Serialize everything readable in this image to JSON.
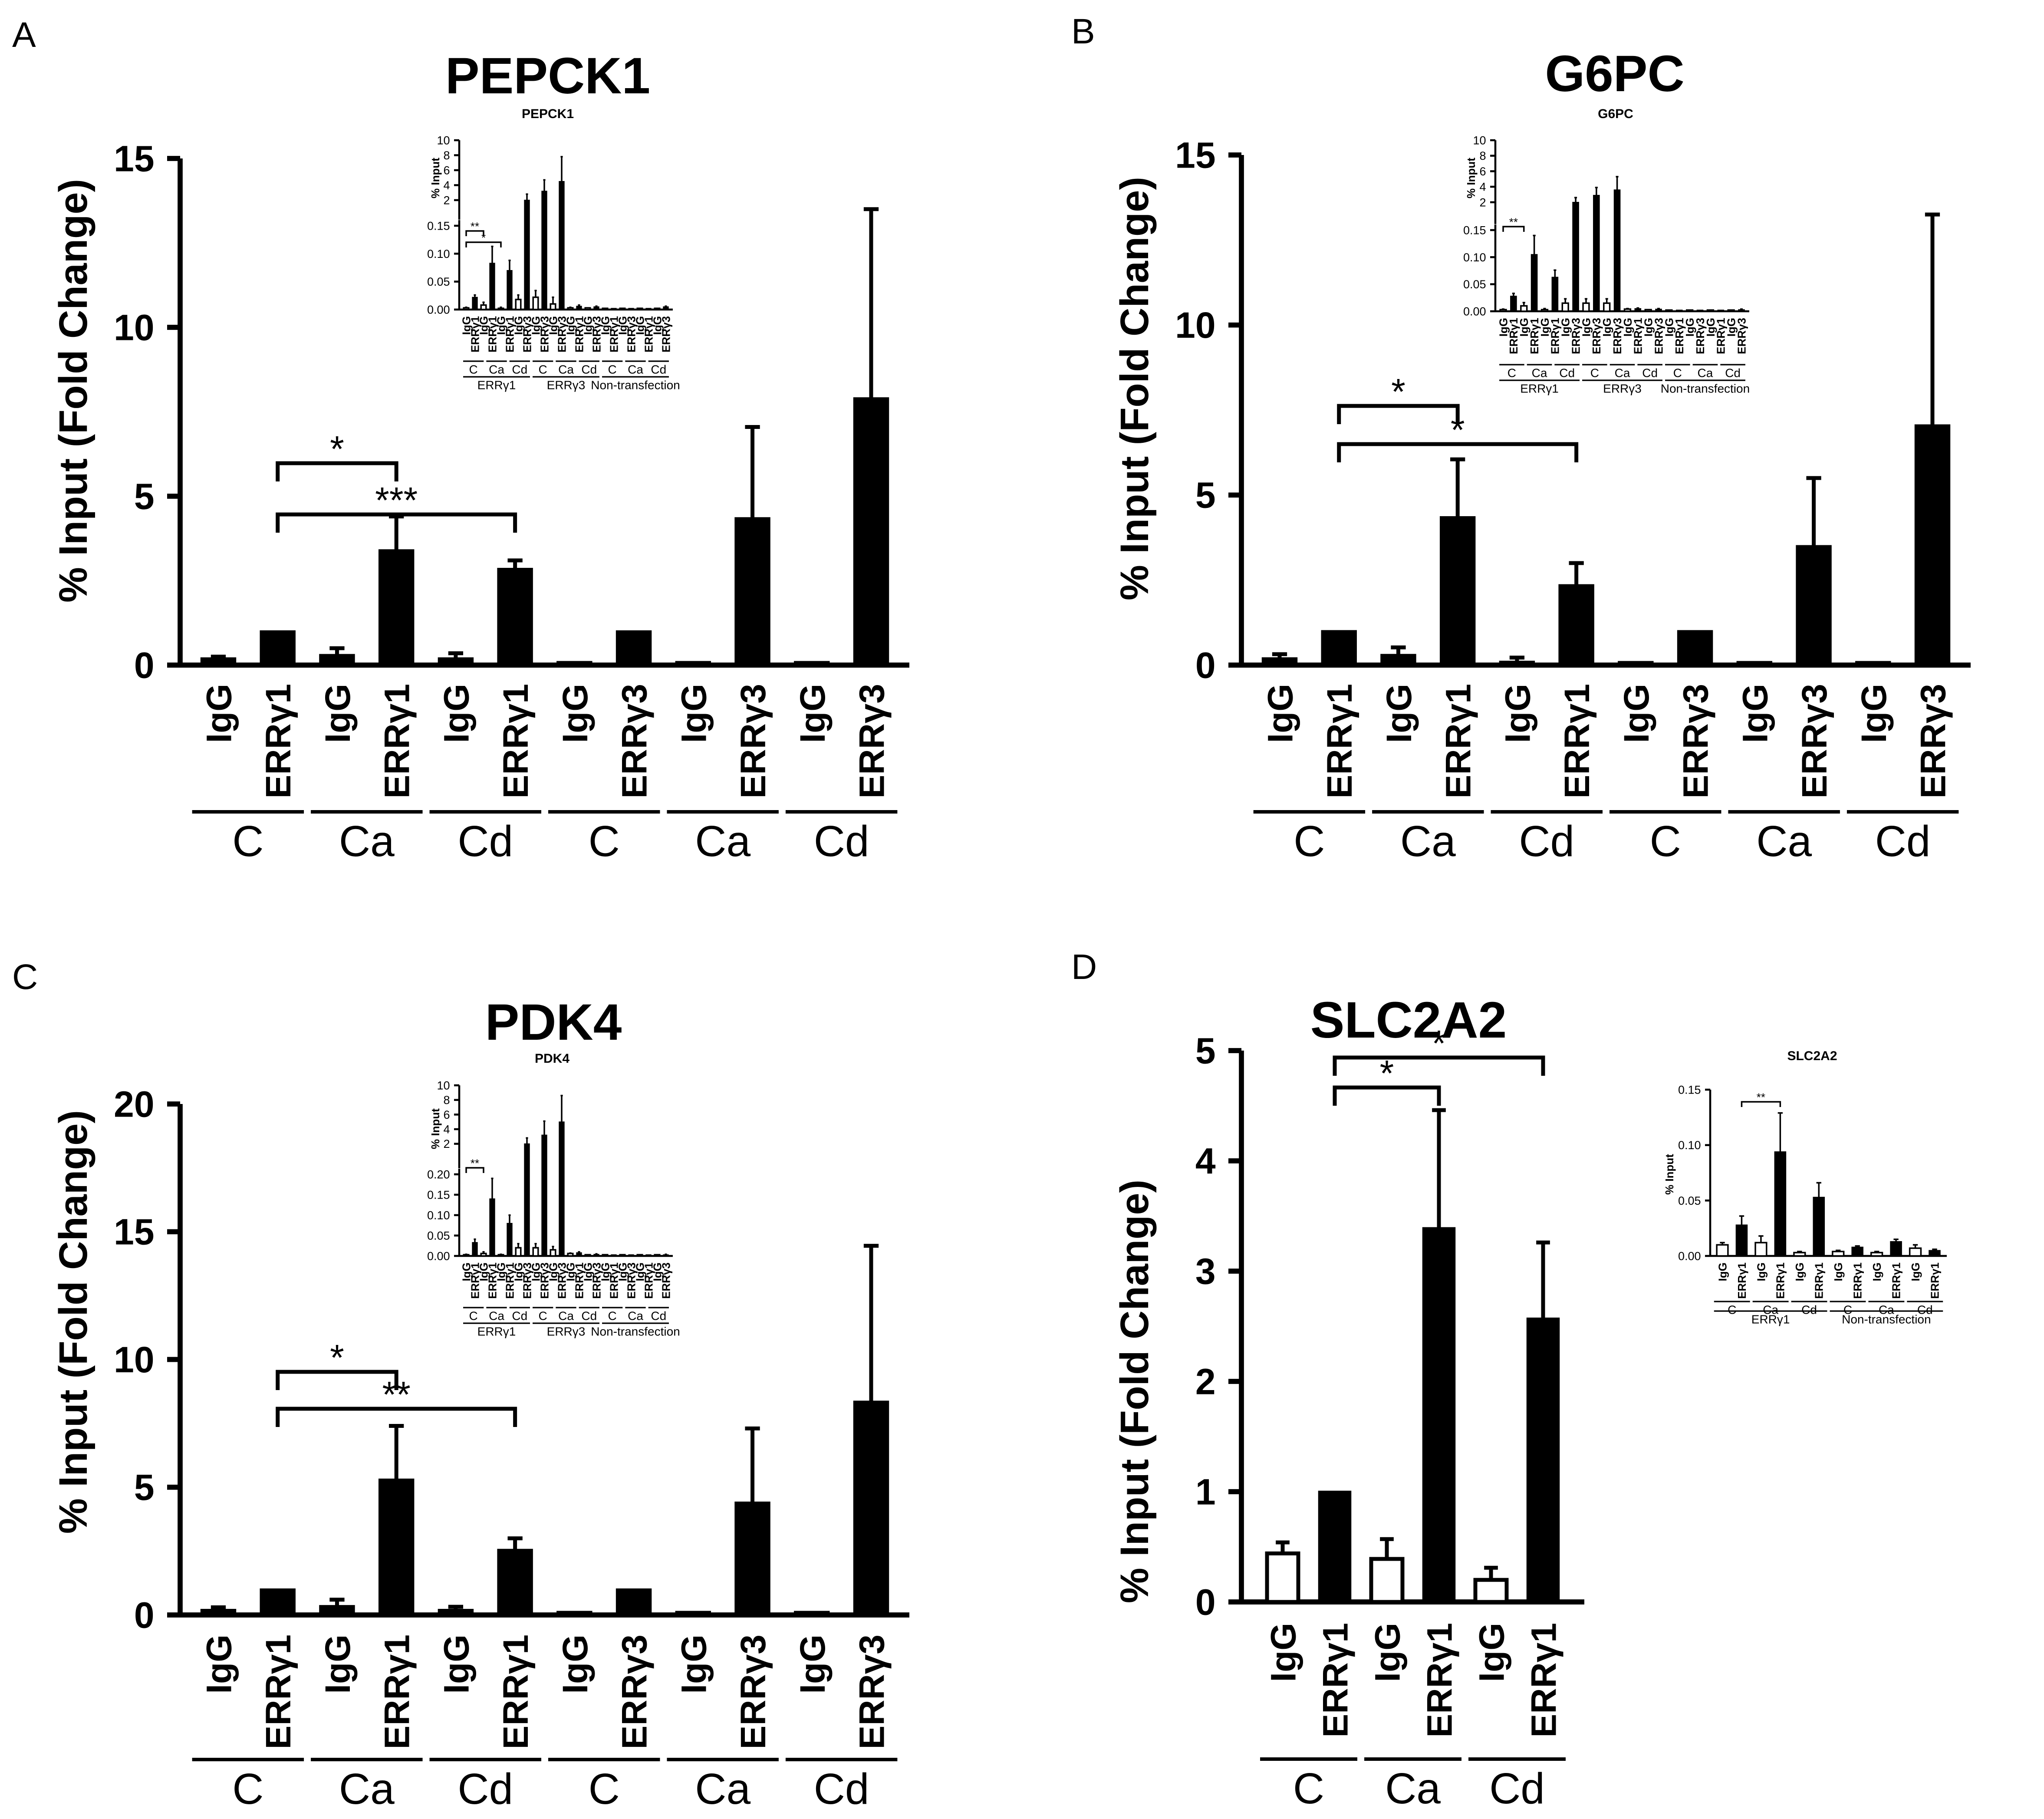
{
  "chart_data": [
    {
      "panel": "A",
      "type": "bar",
      "title": "PEPCK1",
      "ylabel": "% Input (Fold Change)",
      "ylim": [
        0,
        15
      ],
      "yticks": [
        "0",
        "5",
        "10",
        "15"
      ],
      "categories": [
        "IgG",
        "ERRγ1",
        "IgG",
        "ERRγ1",
        "IgG",
        "ERRγ1",
        "IgG",
        "ERRγ3",
        "IgG",
        "ERRγ3",
        "IgG",
        "ERRγ3"
      ],
      "values": [
        0.2,
        1.0,
        0.3,
        3.4,
        0.2,
        2.85,
        0.02,
        1.0,
        0.02,
        4.35,
        0.02,
        7.9
      ],
      "errors": [
        0.05,
        0,
        0.2,
        1.0,
        0.15,
        0.25,
        0,
        0,
        0,
        2.7,
        0,
        5.6
      ],
      "fills": [
        "black",
        "black",
        "black",
        "black",
        "black",
        "black",
        "black",
        "black",
        "black",
        "black",
        "black",
        "black"
      ],
      "groups": [
        "C",
        "Ca",
        "Cd",
        "C",
        "Ca",
        "Cd"
      ],
      "significance": [
        {
          "from": 1,
          "to": 3,
          "label": "*"
        },
        {
          "from": 1,
          "to": 5,
          "label": "***"
        }
      ],
      "inset": {
        "title": "PEPCK1",
        "ylabel": "% Input",
        "upper_ticks": [
          "10",
          "8",
          "6",
          "4",
          "2"
        ],
        "lower_ticks": [
          "0.15",
          "0.10",
          "0.05",
          "0.00"
        ],
        "upper_range": [
          0.2,
          10
        ],
        "lower_range": [
          0,
          0.15
        ],
        "categories": [
          "IgG",
          "ERRγ1",
          "IgG",
          "ERRγ1",
          "IgG",
          "ERRγ1",
          "IgG",
          "ERRγ3",
          "IgG",
          "ERRγ3",
          "IgG",
          "ERRγ3",
          "IgG",
          "ERRγ1",
          "IgG",
          "ERRγ3",
          "IgG",
          "ERRγ1",
          "IgG",
          "ERRγ3",
          "IgG",
          "ERRγ1",
          "IgG",
          "ERRγ3"
        ],
        "values": [
          0.003,
          0.022,
          0.008,
          0.083,
          0.002,
          0.07,
          0.018,
          2.0,
          0.022,
          3.2,
          0.01,
          4.5,
          0.003,
          0.006,
          0.003,
          0.005,
          0.001,
          0.002,
          0.001,
          0.002,
          0.001,
          0.001,
          0.001,
          0.005
        ],
        "errors": [
          0.001,
          0.004,
          0.005,
          0.03,
          0.002,
          0.018,
          0.008,
          0.8,
          0.012,
          1.5,
          0.012,
          3.3,
          0.001,
          0.002,
          0,
          0.001,
          0,
          0,
          0,
          0,
          0,
          0,
          0,
          0.001
        ],
        "fills": [
          "white",
          "black",
          "white",
          "black",
          "white",
          "black",
          "white",
          "black",
          "white",
          "black",
          "white",
          "black",
          "white",
          "black",
          "white",
          "black",
          "white",
          "black",
          "white",
          "black",
          "white",
          "black",
          "white",
          "black"
        ],
        "groups": [
          "C",
          "Ca",
          "Cd",
          "C",
          "Ca",
          "Cd",
          "C",
          "Ca",
          "Cd"
        ],
        "supergroups": [
          "ERRγ1",
          "ERRγ3",
          "Non-transfection"
        ],
        "significance": [
          {
            "from": 0,
            "to": 2,
            "label": "**"
          },
          {
            "from": 0,
            "to": 4,
            "label": "*"
          }
        ]
      }
    },
    {
      "panel": "B",
      "type": "bar",
      "title": "G6PC",
      "ylabel": "% Input (Fold Change)",
      "ylim": [
        0,
        15
      ],
      "yticks": [
        "0",
        "5",
        "10",
        "15"
      ],
      "categories": [
        "IgG",
        "ERRγ1",
        "IgG",
        "ERRγ1",
        "IgG",
        "ERRγ1",
        "IgG",
        "ERRγ3",
        "IgG",
        "ERRγ3",
        "IgG",
        "ERRγ3"
      ],
      "values": [
        0.2,
        1.0,
        0.3,
        4.35,
        0.1,
        2.35,
        0.02,
        1.0,
        0.02,
        3.5,
        0.02,
        7.05
      ],
      "errors": [
        0.12,
        0,
        0.22,
        1.7,
        0.12,
        0.65,
        0,
        0,
        0,
        2.0,
        0,
        6.2
      ],
      "fills": [
        "black",
        "black",
        "black",
        "black",
        "black",
        "black",
        "black",
        "black",
        "black",
        "black",
        "black",
        "black"
      ],
      "groups": [
        "C",
        "Ca",
        "Cd",
        "C",
        "Ca",
        "Cd"
      ],
      "significance": [
        {
          "from": 1,
          "to": 3,
          "label": "*"
        },
        {
          "from": 1,
          "to": 5,
          "label": "*"
        }
      ],
      "inset": {
        "title": "G6PC",
        "ylabel": "% Input",
        "upper_ticks": [
          "10",
          "8",
          "6",
          "4",
          "2"
        ],
        "lower_ticks": [
          "0.15",
          "0.10",
          "0.05",
          "0.00"
        ],
        "upper_range": [
          0.2,
          10
        ],
        "lower_range": [
          0,
          0.15
        ],
        "categories": [
          "IgG",
          "ERRγ1",
          "IgG",
          "ERRγ1",
          "IgG",
          "ERRγ1",
          "IgG",
          "ERRγ3",
          "IgG",
          "ERRγ3",
          "IgG",
          "ERRγ3",
          "IgG",
          "ERRγ1",
          "IgG",
          "ERRγ3",
          "IgG",
          "ERRγ1",
          "IgG",
          "ERRγ3",
          "IgG",
          "ERRγ1",
          "IgG",
          "ERRγ3"
        ],
        "values": [
          0.003,
          0.028,
          0.01,
          0.105,
          0.003,
          0.063,
          0.015,
          2.0,
          0.015,
          2.9,
          0.015,
          3.6,
          0.004,
          0.005,
          0.003,
          0.004,
          0.001,
          0.002,
          0.001,
          0.002,
          0.001,
          0.001,
          0.001,
          0.003
        ],
        "errors": [
          0.001,
          0.005,
          0.006,
          0.035,
          0.002,
          0.013,
          0.008,
          0.6,
          0.008,
          1.0,
          0.008,
          1.7,
          0.001,
          0.001,
          0,
          0.001,
          0,
          0,
          0,
          0,
          0,
          0,
          0,
          0.001
        ],
        "fills": [
          "white",
          "black",
          "white",
          "black",
          "white",
          "black",
          "white",
          "black",
          "white",
          "black",
          "white",
          "black",
          "white",
          "black",
          "white",
          "black",
          "white",
          "black",
          "white",
          "black",
          "white",
          "black",
          "white",
          "black"
        ],
        "groups": [
          "C",
          "Ca",
          "Cd",
          "C",
          "Ca",
          "Cd",
          "C",
          "Ca",
          "Cd"
        ],
        "supergroups": [
          "ERRγ1",
          "ERRγ3",
          "Non-transfection"
        ],
        "significance": [
          {
            "from": 0,
            "to": 2,
            "label": "**"
          }
        ]
      }
    },
    {
      "panel": "C",
      "type": "bar",
      "title": "PDK4",
      "ylabel": "% Input (Fold Change)",
      "ylim": [
        0,
        20
      ],
      "yticks": [
        "0",
        "5",
        "10",
        "15",
        "20"
      ],
      "categories": [
        "IgG",
        "ERRγ1",
        "IgG",
        "ERRγ1",
        "IgG",
        "ERRγ1",
        "IgG",
        "ERRγ3",
        "IgG",
        "ERRγ3",
        "IgG",
        "ERRγ3"
      ],
      "values": [
        0.2,
        1.0,
        0.35,
        5.3,
        0.2,
        2.55,
        0.02,
        1.0,
        0.02,
        4.4,
        0.02,
        8.35
      ],
      "errors": [
        0.1,
        0,
        0.25,
        2.1,
        0.12,
        0.45,
        0,
        0,
        0,
        2.9,
        0,
        6.1
      ],
      "fills": [
        "black",
        "black",
        "black",
        "black",
        "black",
        "black",
        "black",
        "black",
        "black",
        "black",
        "black",
        "black"
      ],
      "groups": [
        "C",
        "Ca",
        "Cd",
        "C",
        "Ca",
        "Cd"
      ],
      "significance": [
        {
          "from": 1,
          "to": 3,
          "label": "*"
        },
        {
          "from": 1,
          "to": 5,
          "label": "**"
        }
      ],
      "inset": {
        "title": "PDK4",
        "ylabel": "% Input",
        "upper_ticks": [
          "10",
          "8",
          "6",
          "4",
          "2"
        ],
        "lower_ticks": [
          "0.20",
          "0.15",
          "0.10",
          "0.05",
          "0.00"
        ],
        "upper_range": [
          0.2,
          10
        ],
        "lower_range": [
          0,
          0.2
        ],
        "categories": [
          "IgG",
          "ERRγ1",
          "IgG",
          "ERRγ1",
          "IgG",
          "ERRγ1",
          "IgG",
          "ERRγ3",
          "IgG",
          "ERRγ3",
          "IgG",
          "ERRγ3",
          "IgG",
          "ERRγ1",
          "IgG",
          "ERRγ3",
          "IgG",
          "ERRγ1",
          "IgG",
          "ERRγ3",
          "IgG",
          "ERRγ1",
          "IgG",
          "ERRγ3"
        ],
        "values": [
          0.003,
          0.033,
          0.006,
          0.14,
          0.002,
          0.08,
          0.02,
          2.0,
          0.02,
          3.2,
          0.015,
          5.0,
          0.006,
          0.008,
          0.003,
          0.004,
          0.001,
          0.002,
          0.001,
          0.002,
          0.001,
          0.001,
          0.001,
          0.003
        ],
        "errors": [
          0.001,
          0.008,
          0.004,
          0.05,
          0.002,
          0.02,
          0.01,
          0.8,
          0.01,
          1.9,
          0.008,
          3.6,
          0.001,
          0.002,
          0,
          0.001,
          0,
          0,
          0,
          0,
          0,
          0,
          0,
          0.001
        ],
        "fills": [
          "white",
          "black",
          "white",
          "black",
          "white",
          "black",
          "white",
          "black",
          "white",
          "black",
          "white",
          "black",
          "white",
          "black",
          "white",
          "black",
          "white",
          "black",
          "white",
          "black",
          "white",
          "black",
          "white",
          "black"
        ],
        "groups": [
          "C",
          "Ca",
          "Cd",
          "C",
          "Ca",
          "Cd",
          "C",
          "Ca",
          "Cd"
        ],
        "supergroups": [
          "ERRγ1",
          "ERRγ3",
          "Non-transfection"
        ],
        "significance": [
          {
            "from": 0,
            "to": 2,
            "label": "**"
          }
        ]
      }
    },
    {
      "panel": "D",
      "type": "bar",
      "title": "SLC2A2",
      "ylabel": "% Input (Fold Change)",
      "ylim": [
        0,
        5
      ],
      "yticks": [
        "0",
        "1",
        "2",
        "3",
        "4",
        "5"
      ],
      "categories": [
        "IgG",
        "ERRγ1",
        "IgG",
        "ERRγ1",
        "IgG",
        "ERRγ1"
      ],
      "values": [
        0.44,
        1.0,
        0.39,
        3.39,
        0.2,
        2.57
      ],
      "errors": [
        0.1,
        0,
        0.18,
        1.07,
        0.11,
        0.69
      ],
      "fills": [
        "white",
        "black",
        "white",
        "black",
        "white",
        "black"
      ],
      "groups": [
        "C",
        "Ca",
        "Cd"
      ],
      "significance": [
        {
          "from": 1,
          "to": 3,
          "label": "*"
        },
        {
          "from": 1,
          "to": 5,
          "label": "*"
        }
      ],
      "inset": {
        "title": "SLC2A2",
        "ylabel": "% Input",
        "ticks": [
          "0.15",
          "0.10",
          "0.05",
          "0.00"
        ],
        "ylim": [
          0,
          0.15
        ],
        "categories": [
          "IgG",
          "ERRγ1",
          "IgG",
          "ERRγ1",
          "IgG",
          "ERRγ1",
          "IgG",
          "ERRγ1",
          "IgG",
          "ERRγ1",
          "IgG",
          "ERRγ1"
        ],
        "values": [
          0.01,
          0.028,
          0.012,
          0.094,
          0.003,
          0.053,
          0.004,
          0.008,
          0.003,
          0.013,
          0.007,
          0.005
        ],
        "errors": [
          0.002,
          0.008,
          0.006,
          0.035,
          0.001,
          0.013,
          0.001,
          0.001,
          0.001,
          0.002,
          0.003,
          0.001
        ],
        "fills": [
          "white",
          "black",
          "white",
          "black",
          "white",
          "black",
          "white",
          "black",
          "white",
          "black",
          "white",
          "black"
        ],
        "groups": [
          "C",
          "Ca",
          "Cd",
          "C",
          "Ca",
          "Cd"
        ],
        "supergroups": [
          "ERRγ1",
          "Non-transfection"
        ],
        "significance": [
          {
            "from": 1,
            "to": 3,
            "label": "**"
          }
        ]
      }
    }
  ]
}
